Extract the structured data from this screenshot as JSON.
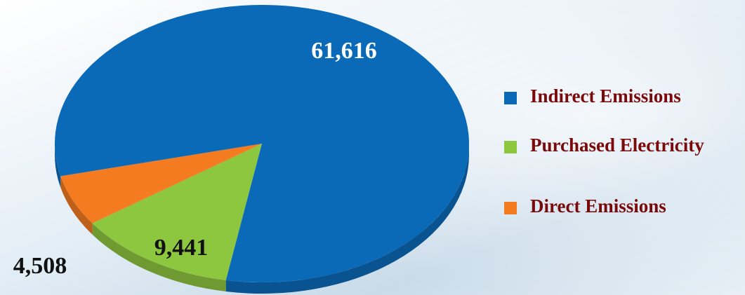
{
  "chart_data": {
    "type": "pie",
    "categories": [
      "Indirect Emissions",
      "Purchased Electricity",
      "Direct Emissions"
    ],
    "values": [
      61616,
      9441,
      4508
    ],
    "value_labels": [
      "61,616",
      "9,441",
      "4,508"
    ],
    "colors": [
      "#0a6ab8",
      "#8dc63f",
      "#f47b20"
    ]
  }
}
